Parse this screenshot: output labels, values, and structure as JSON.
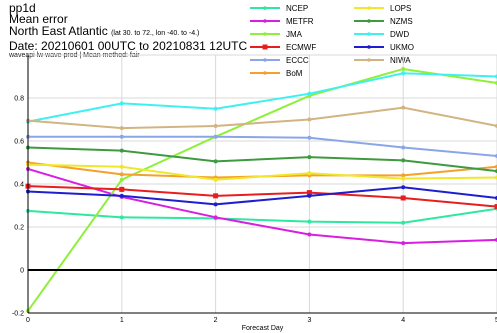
{
  "header": {
    "line1": "pp1d",
    "line2": "Mean error",
    "line3_main": "North East Atlantic",
    "line3_small": "(lat  30. to 72., lon  -40. to  -4.)",
    "line4": "Date: 20210601 00UTC to 20210831 12UTC",
    "line5": "waveapi lw wave prod | Mean method: fair"
  },
  "chart_data": {
    "type": "line",
    "title": "",
    "xlabel": "Forecast Day",
    "ylabel": "",
    "x": [
      0,
      1,
      2,
      3,
      4,
      5
    ],
    "xticks": [
      "0",
      "1",
      "2",
      "3",
      "4",
      "5"
    ],
    "yticks": [
      "-0.2",
      "0",
      "0.2",
      "0.4",
      "0.6",
      "0.8"
    ],
    "xlim": [
      0,
      5
    ],
    "ylim": [
      -0.2,
      1.0
    ],
    "grid": true,
    "legend_position": "top-right",
    "series": [
      {
        "name": "NCEP",
        "color": "#2ee8a0",
        "marker": "dot",
        "values": [
          0.275,
          0.245,
          0.24,
          0.225,
          0.22,
          0.285
        ]
      },
      {
        "name": "METFR",
        "color": "#d81ee0",
        "marker": "dot",
        "values": [
          0.47,
          0.34,
          0.245,
          0.165,
          0.125,
          0.14
        ]
      },
      {
        "name": "JMA",
        "color": "#8ef03a",
        "marker": "dot",
        "values": [
          -0.19,
          0.42,
          0.62,
          0.81,
          0.935,
          0.87
        ]
      },
      {
        "name": "ECMWF",
        "color": "#e81e1e",
        "marker": "square",
        "values": [
          0.39,
          0.375,
          0.345,
          0.36,
          0.335,
          0.295
        ]
      },
      {
        "name": "ECCC",
        "color": "#8aa6e8",
        "marker": "dot",
        "values": [
          0.62,
          0.62,
          0.62,
          0.615,
          0.57,
          0.53
        ]
      },
      {
        "name": "BoM",
        "color": "#f5a02a",
        "marker": "dot",
        "values": [
          0.5,
          0.445,
          0.43,
          0.44,
          0.44,
          0.48
        ]
      },
      {
        "name": "LOPS",
        "color": "#f0e62a",
        "marker": "dot",
        "values": [
          0.49,
          0.48,
          0.42,
          0.45,
          0.425,
          0.43
        ]
      },
      {
        "name": "NZMS",
        "color": "#3e9a3e",
        "marker": "dot",
        "values": [
          0.57,
          0.555,
          0.505,
          0.525,
          0.51,
          0.46
        ]
      },
      {
        "name": "DWD",
        "color": "#40f0f0",
        "marker": "dot",
        "values": [
          0.69,
          0.775,
          0.75,
          0.82,
          0.915,
          0.9
        ]
      },
      {
        "name": "UKMO",
        "color": "#1e1ed0",
        "marker": "dot",
        "values": [
          0.365,
          0.345,
          0.305,
          0.345,
          0.385,
          0.335
        ]
      },
      {
        "name": "NIWA",
        "color": "#d2b482",
        "marker": "dot",
        "values": [
          0.695,
          0.66,
          0.67,
          0.7,
          0.755,
          0.67
        ]
      }
    ]
  }
}
